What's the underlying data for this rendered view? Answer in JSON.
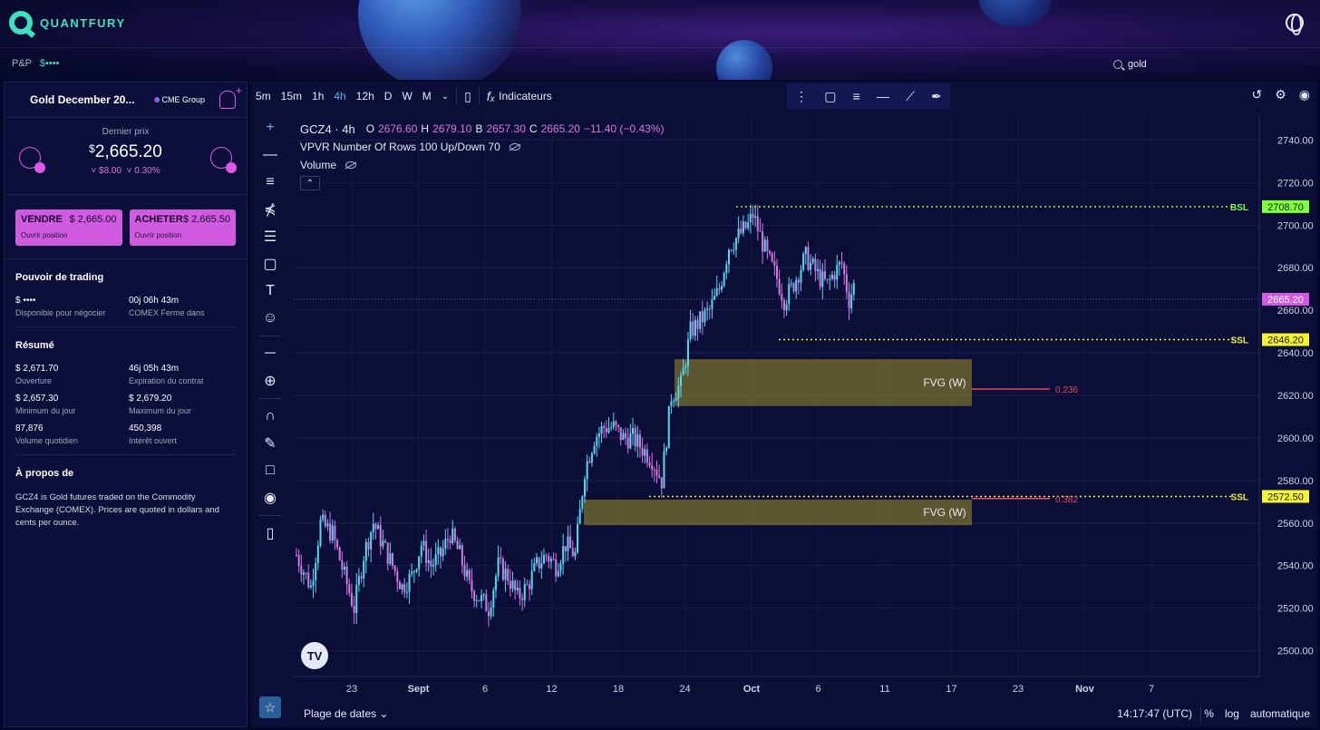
{
  "header": {
    "brand": "QUANTFURY",
    "pnl_label": "P&P",
    "pnl_value": "$••••",
    "search_value": "gold"
  },
  "instrument": {
    "name": "Gold December 20...",
    "exchange": "CME Group",
    "last_price_label": "Dernier prix",
    "last_price_currency": "$",
    "last_price": "2,665.20",
    "change_abs": "˅ $8.00",
    "change_pct": "˅ 0.30%"
  },
  "trade": {
    "sell_label": "VENDRE",
    "sell_price": "$ 2,665.00",
    "sell_sub": "Ouvrir position",
    "buy_label": "ACHETER",
    "buy_price": "$ 2,665.50",
    "buy_sub": "Ouvrir position"
  },
  "trading_power": {
    "title": "Pouvoir de trading",
    "items": [
      {
        "value": "$ ••••",
        "label": "Disponible pour négocier"
      },
      {
        "value": "00j 06h 43m",
        "label": "COMEX Ferme dans"
      }
    ]
  },
  "summary": {
    "title": "Résumé",
    "items": [
      {
        "value": "$ 2,671.70",
        "label": "Ouverture"
      },
      {
        "value": "46j 05h 43m",
        "label": "Expiration du contrat"
      },
      {
        "value": "$ 2,657.30",
        "label": "Minimum du jour"
      },
      {
        "value": "$ 2,679.20",
        "label": "Maximum du jour"
      },
      {
        "value": "87,876",
        "label": "Volume quotidien"
      },
      {
        "value": "450,398",
        "label": "Intérêt ouvert"
      }
    ]
  },
  "about": {
    "title": "À propos de",
    "text": "GCZ4 is Gold futures traded on the Commodity Exchange (COMEX). Prices are quoted in dollars and cents per ounce."
  },
  "toolbar": {
    "timeframes": [
      "5m",
      "15m",
      "1h",
      "4h",
      "12h",
      "D",
      "W",
      "M"
    ],
    "active_timeframe": "4h",
    "indicators_label": "Indicateurs"
  },
  "legend": {
    "symbol": "GCZ4 · 4h",
    "o_label": "O",
    "o": "2676.60",
    "h_label": "H",
    "h": "2679.10",
    "b_label": "B",
    "b": "2657.30",
    "c_label": "C",
    "c": "2665.20",
    "change": "−11.40 (−0.43%)",
    "vpvr": "VPVR Number Of Rows 100 Up/Down 70",
    "volume": "Volume"
  },
  "bottombar": {
    "range_label": "Plage de dates",
    "time": "14:17:47 (UTC)",
    "pct": "%",
    "log": "log",
    "auto": "automatique"
  },
  "chart_data": {
    "type": "candlestick",
    "title": "GCZ4 · 4h",
    "y_ticks": [
      2500,
      2520,
      2540,
      2560,
      2580,
      2600,
      2620,
      2640,
      2660,
      2680,
      2700,
      2720,
      2740
    ],
    "ylim": [
      2490,
      2750
    ],
    "x_ticks": [
      "23",
      "Sept",
      "6",
      "12",
      "18",
      "24",
      "Oct",
      "6",
      "11",
      "17",
      "23",
      "Nov",
      "7"
    ],
    "current_price": {
      "label": "2665.20",
      "value": 2665.2
    },
    "levels": [
      {
        "name": "BSL",
        "value": 2708.7,
        "label": "2708.70",
        "color": "#7fff3a"
      },
      {
        "name": "SSL",
        "value": 2646.2,
        "label": "2646.20",
        "color": "#f2f23a"
      },
      {
        "name": "SSL",
        "value": 2572.5,
        "label": "2572.50",
        "color": "#f2f23a"
      }
    ],
    "zones": [
      {
        "label": "FVG (W)",
        "top": 2637,
        "bottom": 2615,
        "fib": "0.236"
      },
      {
        "label": "FVG (W)",
        "top": 2571,
        "bottom": 2559,
        "fib": "0.382"
      }
    ],
    "colors": {
      "up": "#56d9f0",
      "down": "#d877e8"
    },
    "price_path": [
      [
        0,
        2545
      ],
      [
        6,
        2530
      ],
      [
        10,
        2560
      ],
      [
        15,
        2555
      ],
      [
        20,
        2535
      ],
      [
        24,
        2520
      ],
      [
        28,
        2545
      ],
      [
        32,
        2560
      ],
      [
        36,
        2550
      ],
      [
        40,
        2540
      ],
      [
        44,
        2530
      ],
      [
        48,
        2535
      ],
      [
        52,
        2550
      ],
      [
        56,
        2540
      ],
      [
        60,
        2545
      ],
      [
        64,
        2555
      ],
      [
        68,
        2545
      ],
      [
        72,
        2530
      ],
      [
        76,
        2525
      ],
      [
        80,
        2520
      ],
      [
        84,
        2540
      ],
      [
        88,
        2535
      ],
      [
        92,
        2525
      ],
      [
        96,
        2530
      ],
      [
        100,
        2540
      ],
      [
        104,
        2545
      ],
      [
        108,
        2540
      ],
      [
        112,
        2550
      ],
      [
        116,
        2545
      ],
      [
        120,
        2585
      ],
      [
        124,
        2600
      ],
      [
        128,
        2605
      ],
      [
        132,
        2605
      ],
      [
        136,
        2600
      ],
      [
        140,
        2600
      ],
      [
        144,
        2595
      ],
      [
        148,
        2590
      ],
      [
        152,
        2580
      ],
      [
        156,
        2620
      ],
      [
        160,
        2625
      ],
      [
        164,
        2650
      ],
      [
        168,
        2655
      ],
      [
        172,
        2660
      ],
      [
        176,
        2670
      ],
      [
        180,
        2690
      ],
      [
        184,
        2695
      ],
      [
        188,
        2700
      ],
      [
        190,
        2705
      ],
      [
        193,
        2695
      ],
      [
        196,
        2685
      ],
      [
        200,
        2675
      ],
      [
        203,
        2665
      ],
      [
        206,
        2670
      ],
      [
        209,
        2678
      ],
      [
        212,
        2685
      ],
      [
        215,
        2680
      ],
      [
        218,
        2675
      ],
      [
        221,
        2672
      ],
      [
        224,
        2678
      ],
      [
        227,
        2682
      ],
      [
        230,
        2665
      ],
      [
        233,
        2675
      ]
    ]
  }
}
